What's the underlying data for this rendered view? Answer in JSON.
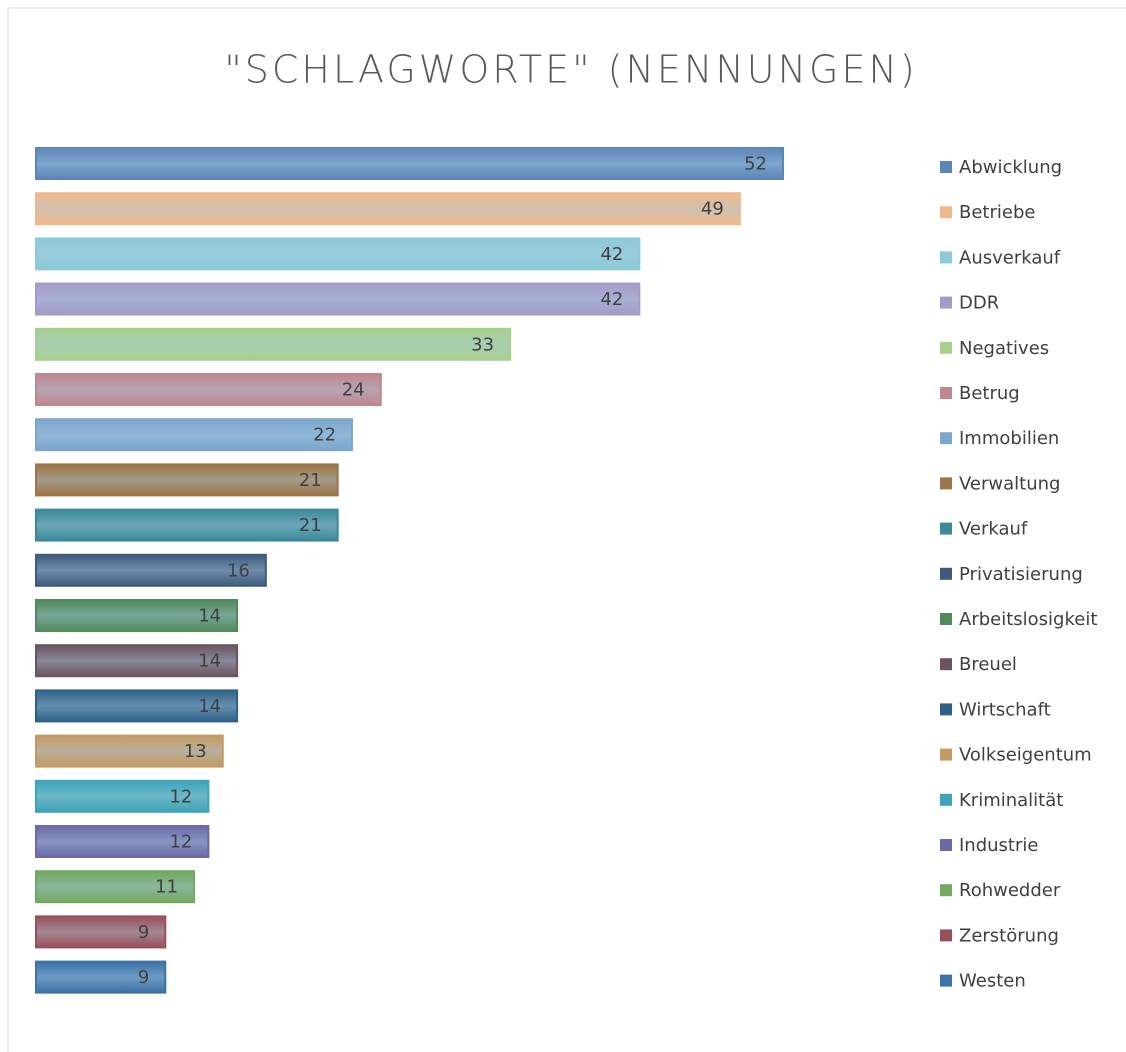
{
  "chart_data": {
    "type": "bar",
    "orientation": "horizontal",
    "title": "\"SCHLAGWORTE\" (NENNUNGEN)",
    "series": [
      {
        "name": "Abwicklung",
        "color": "#5b86b8",
        "values": [
          52
        ]
      },
      {
        "name": "Betriebe",
        "color": "#f0b98a",
        "values": [
          49
        ]
      },
      {
        "name": "Ausverkauf",
        "color": "#8ccbd8",
        "values": [
          42
        ]
      },
      {
        "name": "DDR",
        "color": "#a59bc8",
        "values": [
          42
        ]
      },
      {
        "name": "Negatives",
        "color": "#a8d08d",
        "values": [
          33
        ]
      },
      {
        "name": "Betrug",
        "color": "#c0868d",
        "values": [
          24
        ]
      },
      {
        "name": "Immobilien",
        "color": "#7ba7cf",
        "values": [
          22
        ]
      },
      {
        "name": "Verwaltung",
        "color": "#9e7545",
        "values": [
          21
        ]
      },
      {
        "name": "Verkauf",
        "color": "#3a8a98",
        "values": [
          21
        ]
      },
      {
        "name": "Privatisierung",
        "color": "#3f5a7e",
        "values": [
          16
        ]
      },
      {
        "name": "Arbeitslosigkeit",
        "color": "#4f8a5a",
        "values": [
          14
        ]
      },
      {
        "name": "Breuel",
        "color": "#6b5460",
        "values": [
          14
        ]
      },
      {
        "name": "Wirtschaft",
        "color": "#2e6188",
        "values": [
          14
        ]
      },
      {
        "name": "Volkseigentum",
        "color": "#c49a63",
        "values": [
          13
        ]
      },
      {
        "name": "Kriminalität",
        "color": "#3ca5b8",
        "values": [
          12
        ]
      },
      {
        "name": "Industrie",
        "color": "#6a6aa8",
        "values": [
          12
        ]
      },
      {
        "name": "Rohwedder",
        "color": "#72a860",
        "values": [
          11
        ]
      },
      {
        "name": "Zerstörung",
        "color": "#9a5058",
        "values": [
          9
        ]
      },
      {
        "name": "Westen",
        "color": "#3a73a8",
        "values": [
          9
        ]
      }
    ],
    "legend": "right"
  }
}
